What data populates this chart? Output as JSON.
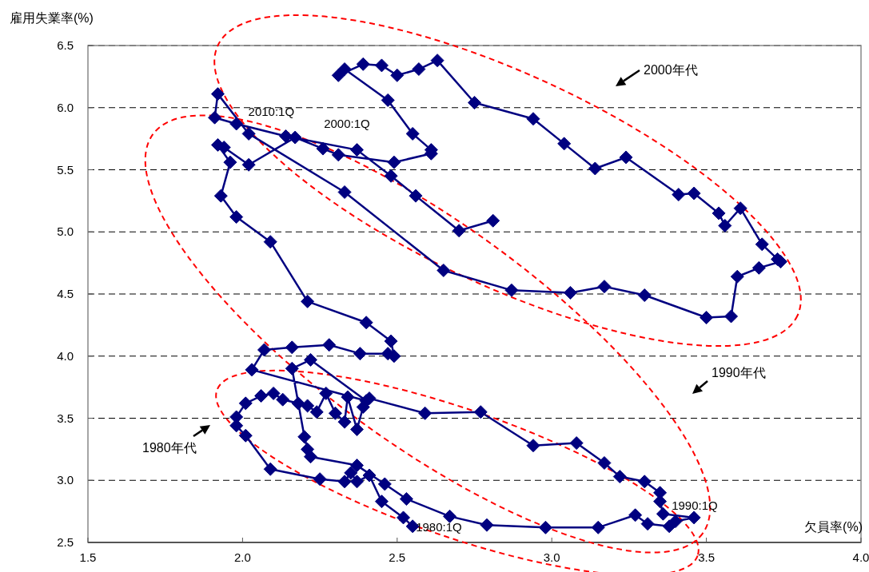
{
  "chart_data": {
    "type": "line",
    "xlabel": "欠員率(%)",
    "ylabel": "雇用失業率(%)",
    "xlim": [
      1.5,
      4.0
    ],
    "xticks": [
      1.5,
      {
        "value": 2,
        "label": "2.0"
      },
      2.5,
      {
        "value": 3,
        "label": "3.0"
      },
      3.5,
      {
        "value": 4,
        "label": "4.0"
      }
    ],
    "ylim": [
      2.5,
      6.5
    ],
    "yticks": [
      2.5,
      {
        "value": 3,
        "label": "3.0"
      },
      3.5,
      {
        "value": 4,
        "label": "4.0"
      },
      4.5,
      {
        "value": 5,
        "label": "5.0"
      },
      5.5,
      {
        "value": 6,
        "label": "6.0"
      },
      6.5
    ],
    "grid": "y",
    "marker": "diamond",
    "line_style": "solid",
    "series": [
      {
        "color": "#000080",
        "x": [
          2.55,
          2.52,
          2.45,
          2.41,
          2.37,
          2.35,
          2.33,
          2.25,
          2.09,
          2.01,
          1.98,
          1.98,
          2.01,
          2.06,
          2.1,
          2.13,
          2.18,
          2.21,
          2.24,
          2.27,
          2.3,
          2.33,
          2.34,
          2.37,
          2.39,
          2.41,
          2.59,
          2.77,
          2.94,
          3.08,
          3.17,
          3.22,
          3.3,
          3.35,
          3.35,
          3.36,
          3.46,
          3.4,
          3.38,
          3.31,
          3.27,
          3.15,
          2.98,
          2.79,
          2.67,
          2.53,
          2.46,
          2.37,
          2.22,
          2.21,
          2.2,
          2.16,
          2.22,
          2.4,
          2.03,
          2.07,
          2.16,
          2.28,
          2.38,
          2.47,
          2.49,
          2.48,
          2.4,
          2.21,
          2.09,
          1.98,
          1.93,
          1.96,
          1.92,
          1.94,
          2.02,
          2.17,
          2.26,
          2.31,
          2.49,
          2.61,
          2.61,
          2.55,
          2.47,
          2.33,
          2.31,
          2.39,
          2.45,
          2.5,
          2.57,
          2.63,
          2.75,
          2.94,
          3.04,
          3.14,
          3.24,
          3.41,
          3.46,
          3.54,
          3.56,
          3.61,
          3.68,
          3.73,
          3.74,
          3.67,
          3.6,
          3.58,
          3.5,
          3.3,
          3.17,
          3.06,
          2.87,
          2.65,
          2.33,
          2.02,
          1.92,
          1.91,
          1.98,
          2.14,
          2.37,
          2.48,
          2.56,
          2.7,
          2.81
        ],
        "values": [
          2.63,
          2.7,
          2.83,
          3.04,
          2.99,
          3.06,
          2.99,
          3.01,
          3.09,
          3.36,
          3.44,
          3.51,
          3.62,
          3.68,
          3.7,
          3.65,
          3.62,
          3.6,
          3.55,
          3.7,
          3.54,
          3.47,
          3.67,
          3.41,
          3.59,
          3.66,
          3.54,
          3.55,
          3.28,
          3.3,
          3.14,
          3.03,
          2.99,
          2.9,
          2.83,
          2.73,
          2.7,
          2.67,
          2.63,
          2.65,
          2.72,
          2.62,
          2.62,
          2.64,
          2.71,
          2.85,
          2.97,
          3.12,
          3.19,
          3.25,
          3.35,
          3.9,
          3.97,
          3.64,
          3.89,
          4.05,
          4.07,
          4.09,
          4.02,
          4.02,
          4.0,
          4.12,
          4.27,
          4.44,
          4.92,
          5.12,
          5.29,
          5.56,
          5.7,
          5.68,
          5.54,
          5.76,
          5.67,
          5.62,
          5.56,
          5.63,
          5.66,
          5.79,
          6.06,
          6.31,
          6.26,
          6.35,
          6.34,
          6.26,
          6.31,
          6.38,
          6.04,
          5.91,
          5.71,
          5.51,
          5.6,
          5.3,
          5.31,
          5.15,
          5.05,
          5.19,
          4.9,
          4.78,
          4.76,
          4.71,
          4.64,
          4.32,
          4.31,
          4.49,
          4.56,
          4.51,
          4.53,
          4.69,
          5.32,
          5.79,
          6.11,
          5.92,
          5.87,
          5.77,
          5.66,
          5.45,
          5.29,
          5.01,
          5.09
        ]
      }
    ],
    "annotations": [
      {
        "text": "1980:1Q",
        "x": 2.55,
        "y": 2.63
      },
      {
        "text": "1990:1Q",
        "x": 3.46,
        "y": 2.7
      },
      {
        "text": "2000:1Q",
        "x": 2.17,
        "y": 5.76
      },
      {
        "text": "2010:1Q",
        "x": 1.91,
        "y": 5.92
      },
      "2000年代",
      "1990年代",
      "1980年代"
    ]
  }
}
